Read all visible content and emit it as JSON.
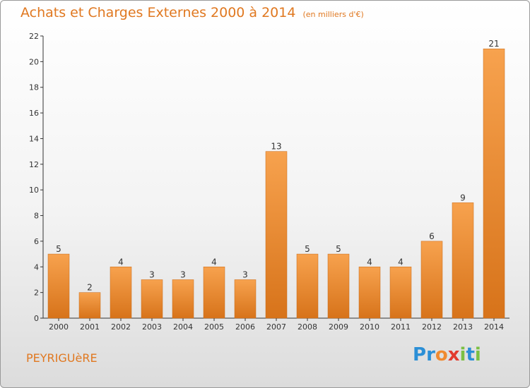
{
  "chart_data": {
    "type": "bar",
    "title": "Achats et Charges Externes 2000 à 2014",
    "subtitle": "(en milliers d'€)",
    "categories": [
      "2000",
      "2001",
      "2002",
      "2003",
      "2004",
      "2005",
      "2006",
      "2007",
      "2008",
      "2009",
      "2010",
      "2011",
      "2012",
      "2013",
      "2014"
    ],
    "values": [
      5,
      2,
      4,
      3,
      3,
      4,
      3,
      13,
      5,
      5,
      4,
      4,
      6,
      9,
      21
    ],
    "ylim": [
      0,
      22
    ],
    "yticks": [
      0,
      2,
      4,
      6,
      8,
      10,
      12,
      14,
      16,
      18,
      20,
      22
    ],
    "grid": false,
    "bar_color": "#f08a30"
  },
  "commune": "PEYRIGUèRE",
  "logo": {
    "text": "Proxiti",
    "letters": [
      {
        "ch": "P",
        "color": "#2b8fd6"
      },
      {
        "ch": "r",
        "color": "#2b8fd6"
      },
      {
        "ch": "o",
        "color": "#f08a30"
      },
      {
        "ch": "x",
        "color": "#e23b2e"
      },
      {
        "ch": "i",
        "color": "#7bc043"
      },
      {
        "ch": "t",
        "color": "#2b8fd6"
      },
      {
        "ch": "i",
        "color": "#7bc043"
      }
    ]
  },
  "colors": {
    "title": "#e07820",
    "axis": "#333333"
  }
}
